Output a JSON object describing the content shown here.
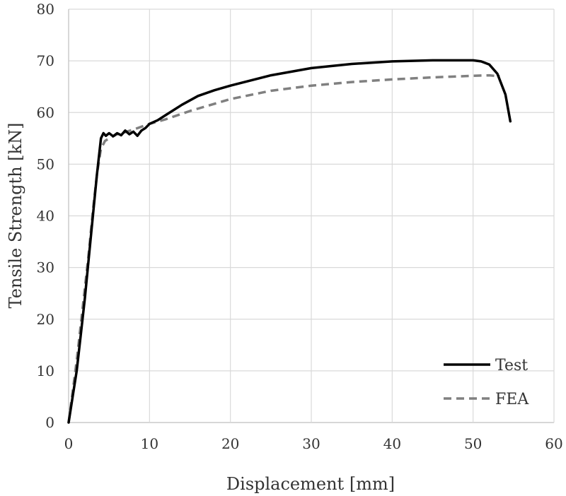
{
  "chart_data": {
    "type": "line",
    "title": "",
    "xlabel": "Displacement [mm]",
    "ylabel": "Tensile Strength [kN]",
    "xlim": [
      0,
      60
    ],
    "ylim": [
      0,
      80
    ],
    "x_ticks": [
      "0",
      "10",
      "20",
      "30",
      "40",
      "50",
      "60"
    ],
    "y_ticks": [
      "0",
      "10",
      "20",
      "30",
      "40",
      "50",
      "60",
      "70",
      "80"
    ],
    "grid": true,
    "legend_position": "bottom-right",
    "series": [
      {
        "name": "Test",
        "color": "#000000",
        "dash": "solid",
        "x": [
          0,
          0.5,
          1,
          1.5,
          2,
          2.5,
          3,
          3.5,
          4,
          4.3,
          4.6,
          5,
          5.5,
          6,
          6.5,
          7,
          7.5,
          8,
          8.5,
          9,
          9.5,
          10,
          11,
          12,
          14,
          16,
          18,
          20,
          25,
          30,
          35,
          40,
          45,
          50,
          51,
          52,
          53,
          54,
          54.6
        ],
        "y": [
          0,
          5,
          10,
          17,
          24,
          32,
          40,
          48,
          55,
          56,
          55.5,
          56,
          55.4,
          56,
          55.6,
          56.5,
          55.8,
          56.3,
          55.5,
          56.5,
          57,
          57.8,
          58.5,
          59.5,
          61.5,
          63.2,
          64.3,
          65.2,
          67.2,
          68.6,
          69.4,
          69.9,
          70.1,
          70.1,
          69.9,
          69.3,
          67.5,
          63.5,
          58.3
        ]
      },
      {
        "name": "FEA",
        "color": "#808080",
        "dash": "dashed",
        "x": [
          0,
          0.5,
          1,
          1.5,
          2,
          2.5,
          3,
          3.5,
          4,
          4.5,
          5,
          6,
          7,
          8,
          10,
          12,
          15,
          20,
          25,
          30,
          35,
          40,
          45,
          50,
          52,
          53.3
        ],
        "y": [
          0,
          6,
          12,
          19,
          26,
          33,
          41,
          48,
          53,
          54.5,
          55,
          55.8,
          56.2,
          56.7,
          57.8,
          58.7,
          60.3,
          62.6,
          64.2,
          65.2,
          65.9,
          66.4,
          66.8,
          67.1,
          67.2,
          67
        ]
      }
    ]
  }
}
